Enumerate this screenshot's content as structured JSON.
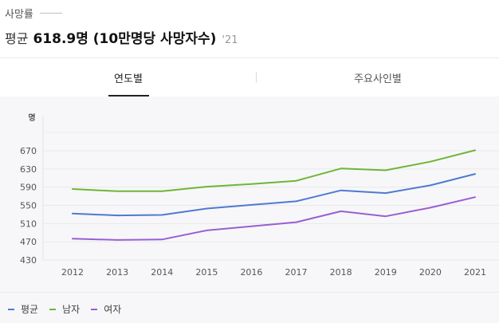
{
  "header": {
    "title": "사망률",
    "summary_label": "평균",
    "summary_value": "618.9명 (10만명당 사망자수)",
    "summary_year": "'21"
  },
  "tabs": [
    {
      "label": "연도별",
      "active": true
    },
    {
      "label": "주요사인별",
      "active": false
    }
  ],
  "chart_data": {
    "type": "line",
    "y_unit": "명",
    "ylim": [
      430,
      670
    ],
    "yticks": [
      430,
      470,
      510,
      550,
      590,
      630,
      670
    ],
    "categories": [
      "2012",
      "2013",
      "2014",
      "2015",
      "2016",
      "2017",
      "2018",
      "2019",
      "2020",
      "2021"
    ],
    "series": [
      {
        "name": "평균",
        "color": "#4f7ad0",
        "values": [
          532,
          528,
          529,
          543,
          551,
          559,
          583,
          577,
          594,
          619
        ]
      },
      {
        "name": "남자",
        "color": "#6fb536",
        "values": [
          586,
          581,
          581,
          591,
          597,
          604,
          631,
          627,
          646,
          671
        ]
      },
      {
        "name": "여자",
        "color": "#9a5fd1",
        "values": [
          477,
          474,
          475,
          495,
          504,
          513,
          537,
          526,
          545,
          568
        ]
      }
    ],
    "grid": true,
    "legend": "bottom-left"
  }
}
